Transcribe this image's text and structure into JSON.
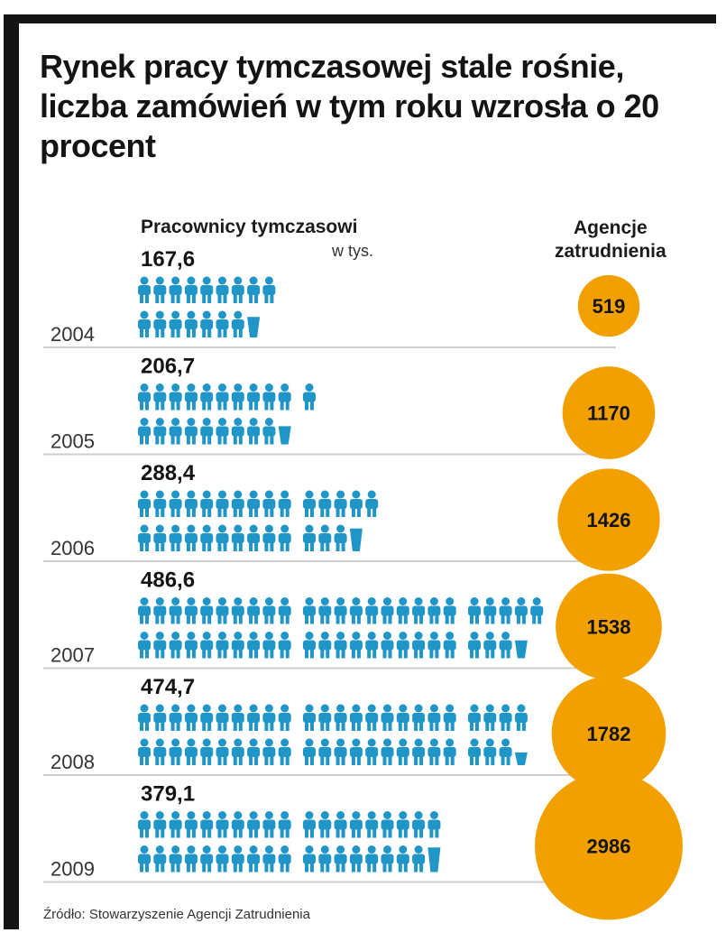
{
  "title": "Rynek pracy tymczasowej stale rośnie, liczba zamówień w tym roku wzrosła o 20 procent",
  "headers": {
    "workers": "Pracownicy tymczasowi",
    "unit": "w tys.",
    "agencies_line1": "Agencje",
    "agencies_line2": "zatrudnienia"
  },
  "source": "Źródło: Stowarzyszenie Agencji Zatrudnienia",
  "colors": {
    "figure": "#1f95c8",
    "circle": "#f2a000",
    "text": "#141414",
    "separator": "#cfcfcf"
  },
  "chart_data": {
    "type": "bar",
    "categories": [
      "2004",
      "2005",
      "2006",
      "2007",
      "2008",
      "2009"
    ],
    "series": [
      {
        "name": "Pracownicy tymczasowi",
        "values": [
          167.6,
          206.7,
          288.4,
          486.6,
          474.7,
          379.1
        ],
        "value_labels": [
          "167,6",
          "206,7",
          "288,4",
          "486,6",
          "474,7",
          "379,1"
        ]
      },
      {
        "name": "Agencje zatrudnienia",
        "values": [
          519,
          1170,
          1426,
          1538,
          1782,
          2986
        ]
      }
    ]
  }
}
